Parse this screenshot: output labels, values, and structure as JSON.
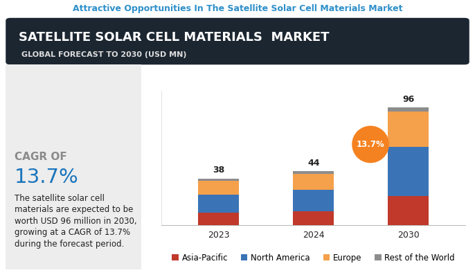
{
  "header": "Attractive Opportunities In The Satellite Solar Cell Materials Market",
  "chart_data": {
    "type": "bar",
    "title": "SATELLITE SOLAR CELL MATERIALS  MARKET",
    "subtitle": "GLOBAL FORECAST TO 2030 (USD MN)",
    "categories": [
      "2023",
      "2024",
      "2030"
    ],
    "stacked": true,
    "series": [
      {
        "name": "Asia-Pacific",
        "color": "#c0392b",
        "values": [
          10,
          11.5,
          24
        ]
      },
      {
        "name": "North America",
        "color": "#3a74b6",
        "values": [
          15,
          17.5,
          40
        ]
      },
      {
        "name": "Europe",
        "color": "#f5a04a",
        "values": [
          11,
          13,
          29
        ]
      },
      {
        "name": "Rest of the World",
        "color": "#8c8c8c",
        "values": [
          2,
          2,
          3
        ]
      }
    ],
    "totals": [
      38,
      44,
      96
    ],
    "annotation": "13.7%",
    "ylim": [
      0,
      110
    ],
    "yticks": [],
    "tick_labels": "x",
    "legend": "lower center"
  },
  "panel": {
    "label": "CAGR OF",
    "value": "13.7%",
    "text": "The satellite solar cell\nmaterials are expected to be\nworth USD 96 million in 2030,\ngrowing at a CAGR of 13.7%\nduring the forecast period."
  }
}
